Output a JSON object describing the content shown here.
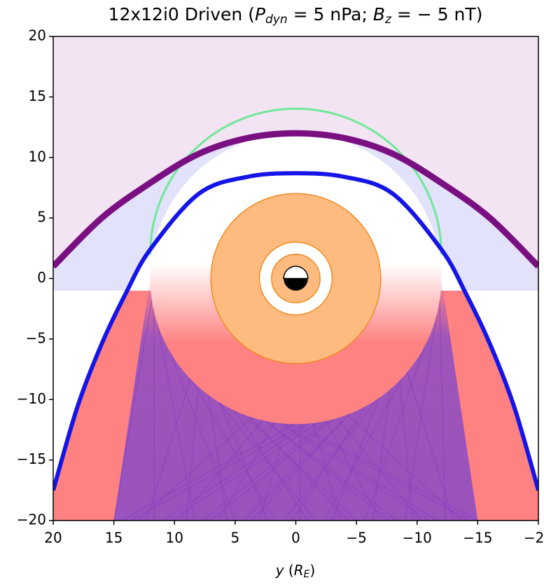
{
  "chart_data": {
    "type": "line",
    "title": [
      "12x12i0 Driven (",
      "P",
      "dyn",
      " = 5 nPa; ",
      "B",
      "z",
      " = − 5 nT)"
    ],
    "x_label": [
      "y",
      " (",
      "R",
      "E",
      ")"
    ],
    "xlim": [
      20,
      -20
    ],
    "ylim": [
      -20,
      20
    ],
    "xticks": [
      20,
      15,
      10,
      5,
      0,
      {
        "value": -5,
        "label": "−5"
      },
      {
        "value": -10,
        "label": "−10"
      },
      {
        "value": -15,
        "label": "−15"
      },
      {
        "value": -20,
        "label": "−20"
      }
    ],
    "yticks": [
      {
        "value": -20,
        "label": "−20"
      },
      {
        "value": -15,
        "label": "−15"
      },
      {
        "value": -10,
        "label": "−10"
      },
      {
        "value": -5,
        "label": "−5"
      },
      0,
      5,
      10,
      15,
      20
    ],
    "series": [
      {
        "color": "#7a0f82",
        "x": [
          20,
          16,
          12,
          8,
          4,
          0,
          -4,
          -8,
          -12,
          -16,
          -20
        ],
        "values": [
          1.0,
          5.0,
          7.9,
          10.3,
          11.6,
          12.0,
          11.6,
          10.3,
          7.9,
          5.0,
          1.0
        ]
      },
      {
        "color": "#1515e8",
        "x": [
          20,
          18,
          16,
          14,
          12,
          8,
          4,
          0,
          -4,
          -8,
          -12,
          -14,
          -16,
          -18,
          -20
        ],
        "values": [
          -17.5,
          -10.6,
          -5.4,
          -1.2,
          2.4,
          7.0,
          8.4,
          8.7,
          8.4,
          7.0,
          2.4,
          -1.2,
          -5.4,
          -10.6,
          -17.5
        ]
      }
    ]
  }
}
